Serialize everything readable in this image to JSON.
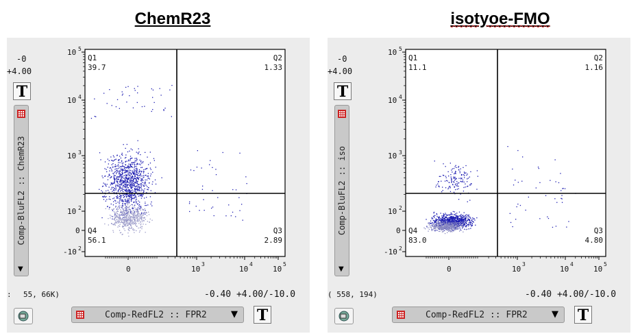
{
  "titles": {
    "left": "ChemR23",
    "right": "isotyoe-FMO"
  },
  "left_panel": {
    "y_top_value": "-0",
    "y_top_offset": "+4.00",
    "t_button": "T",
    "y_axis_param": "Comp-BluFL2 :: ChemR23",
    "coords": "55,   66K)",
    "coords_prefix": ":",
    "x_scale_info": "-0.40 +4.00/-10.0",
    "x_axis_param": "Comp-RedFL2 :: FPR2",
    "quadrants": {
      "Q1": "39.7",
      "Q2": "1.33",
      "Q3": "2.89",
      "Q4": "56.1"
    }
  },
  "right_panel": {
    "y_top_value": "-0",
    "y_top_offset": "+4.00",
    "t_button": "T",
    "y_axis_param": "Comp-BluFL2 :: iso",
    "coords": "(  558,   194)",
    "x_scale_info": "-0.40 +4.00/-10.0",
    "x_axis_param": "Comp-RedFL2 :: FPR2",
    "quadrants": {
      "Q1": "11.1",
      "Q2": "1.16",
      "Q3": "4.80",
      "Q4": "83.0"
    }
  },
  "quadrant_names": [
    "Q1",
    "Q2",
    "Q3",
    "Q4"
  ],
  "chart_data": [
    {
      "type": "scatter",
      "title": "ChemR23",
      "xlabel": "Comp-RedFL2 :: FPR2",
      "ylabel": "Comp-BluFL2 :: ChemR23",
      "xscale": "biexponential",
      "yscale": "biexponential",
      "x_tick_labels": [
        "0",
        "10^3",
        "10^4",
        "10^5"
      ],
      "y_tick_labels": [
        "10^5",
        "10^4",
        "10^3",
        "10^2",
        "0",
        "-10^2"
      ],
      "gate": {
        "x": 500,
        "y": 180
      },
      "quadrants": [
        {
          "name": "Q1",
          "percent": 39.7
        },
        {
          "name": "Q2",
          "percent": 1.33
        },
        {
          "name": "Q3",
          "percent": 2.89
        },
        {
          "name": "Q4",
          "percent": 56.1
        }
      ],
      "dot_color": "#1a1ab0"
    },
    {
      "type": "scatter",
      "title": "isotyoe-FMO",
      "xlabel": "Comp-RedFL2 :: FPR2",
      "ylabel": "Comp-BluFL2 :: iso",
      "xscale": "biexponential",
      "yscale": "biexponential",
      "x_tick_labels": [
        "0",
        "10^3",
        "10^4",
        "10^5"
      ],
      "y_tick_labels": [
        "10^5",
        "10^4",
        "10^3",
        "10^2",
        "0",
        "-10^2"
      ],
      "gate": {
        "x": 500,
        "y": 180
      },
      "quadrants": [
        {
          "name": "Q1",
          "percent": 11.1
        },
        {
          "name": "Q2",
          "percent": 1.16
        },
        {
          "name": "Q3",
          "percent": 4.8
        },
        {
          "name": "Q4",
          "percent": 83.0
        }
      ],
      "dot_color": "#1a1ab0"
    }
  ]
}
